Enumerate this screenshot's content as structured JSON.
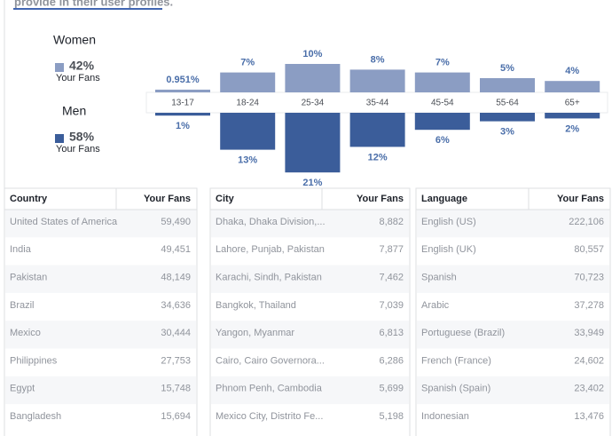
{
  "header": {
    "text": "provide in their user profiles."
  },
  "summary": [
    {
      "name": "Women",
      "percent": "42%",
      "caption": "Your Fans"
    },
    {
      "name": "Men",
      "percent": "58%",
      "caption": "Your Fans"
    }
  ],
  "chart_data": {
    "type": "bar",
    "categories": [
      "13-17",
      "18-24",
      "25-34",
      "35-44",
      "45-54",
      "55-64",
      "65+"
    ],
    "series": [
      {
        "name": "Women",
        "color": "#8b9dc3",
        "values": [
          0.951,
          7,
          10,
          8,
          7,
          5,
          4
        ],
        "value_labels": [
          "0.951%",
          "7%",
          "10%",
          "8%",
          "7%",
          "5%",
          "4%"
        ]
      },
      {
        "name": "Men",
        "color": "#3b5d9a",
        "values": [
          1,
          13,
          21,
          12,
          6,
          3,
          2
        ],
        "value_labels": [
          "1%",
          "13%",
          "21%",
          "12%",
          "6%",
          "3%",
          "2%"
        ]
      }
    ]
  },
  "tables": [
    {
      "headers": [
        "Country",
        "Your Fans"
      ],
      "rows": [
        [
          "United States of America",
          "59,490"
        ],
        [
          "India",
          "49,451"
        ],
        [
          "Pakistan",
          "48,149"
        ],
        [
          "Brazil",
          "34,636"
        ],
        [
          "Mexico",
          "30,444"
        ],
        [
          "Philippines",
          "27,753"
        ],
        [
          "Egypt",
          "15,748"
        ],
        [
          "Bangladesh",
          "15,694"
        ]
      ]
    },
    {
      "headers": [
        "City",
        "Your Fans"
      ],
      "rows": [
        [
          "Dhaka, Dhaka Division,...",
          "8,882"
        ],
        [
          "Lahore, Punjab, Pakistan",
          "7,877"
        ],
        [
          "Karachi, Sindh, Pakistan",
          "7,462"
        ],
        [
          "Bangkok, Thailand",
          "7,039"
        ],
        [
          "Yangon, Myanmar",
          "6,813"
        ],
        [
          "Cairo, Cairo Governora...",
          "6,286"
        ],
        [
          "Phnom Penh, Cambodia",
          "5,699"
        ],
        [
          "Mexico City, Distrito Fe...",
          "5,198"
        ]
      ]
    },
    {
      "headers": [
        "Language",
        "Your Fans"
      ],
      "rows": [
        [
          "English (US)",
          "222,106"
        ],
        [
          "English (UK)",
          "80,557"
        ],
        [
          "Spanish",
          "70,723"
        ],
        [
          "Arabic",
          "37,278"
        ],
        [
          "Portuguese (Brazil)",
          "33,949"
        ],
        [
          "French (France)",
          "24,602"
        ],
        [
          "Spanish (Spain)",
          "23,402"
        ],
        [
          "Indonesian",
          "13,476"
        ]
      ]
    }
  ]
}
